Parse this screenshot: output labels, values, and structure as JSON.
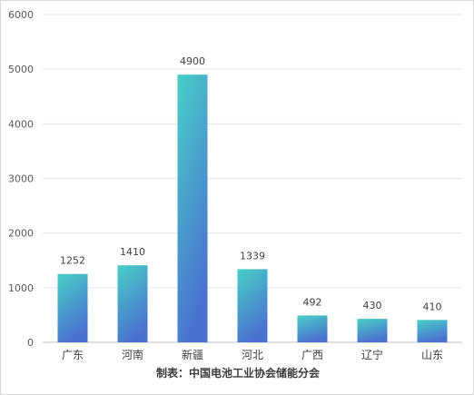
{
  "chart_data": {
    "type": "bar",
    "categories": [
      "广东",
      "河南",
      "新疆",
      "河北",
      "广西",
      "辽宁",
      "山东"
    ],
    "values": [
      1252,
      1410,
      4900,
      1339,
      492,
      430,
      410
    ],
    "data_labels": [
      "1252",
      "1410",
      "4900",
      "1339",
      "492",
      "430",
      "410"
    ],
    "ylim": [
      0,
      6000
    ],
    "yticks": [
      "0",
      "1000",
      "2000",
      "3000",
      "4000",
      "5000",
      "6000"
    ],
    "grid": true,
    "legend": "none",
    "colors": {
      "bar_top": "#48cfc6",
      "bar_bottom": "#4a72d0",
      "grid": "#e6e6e6"
    }
  },
  "source_note": "制表：中国电池工业协会储能分会"
}
